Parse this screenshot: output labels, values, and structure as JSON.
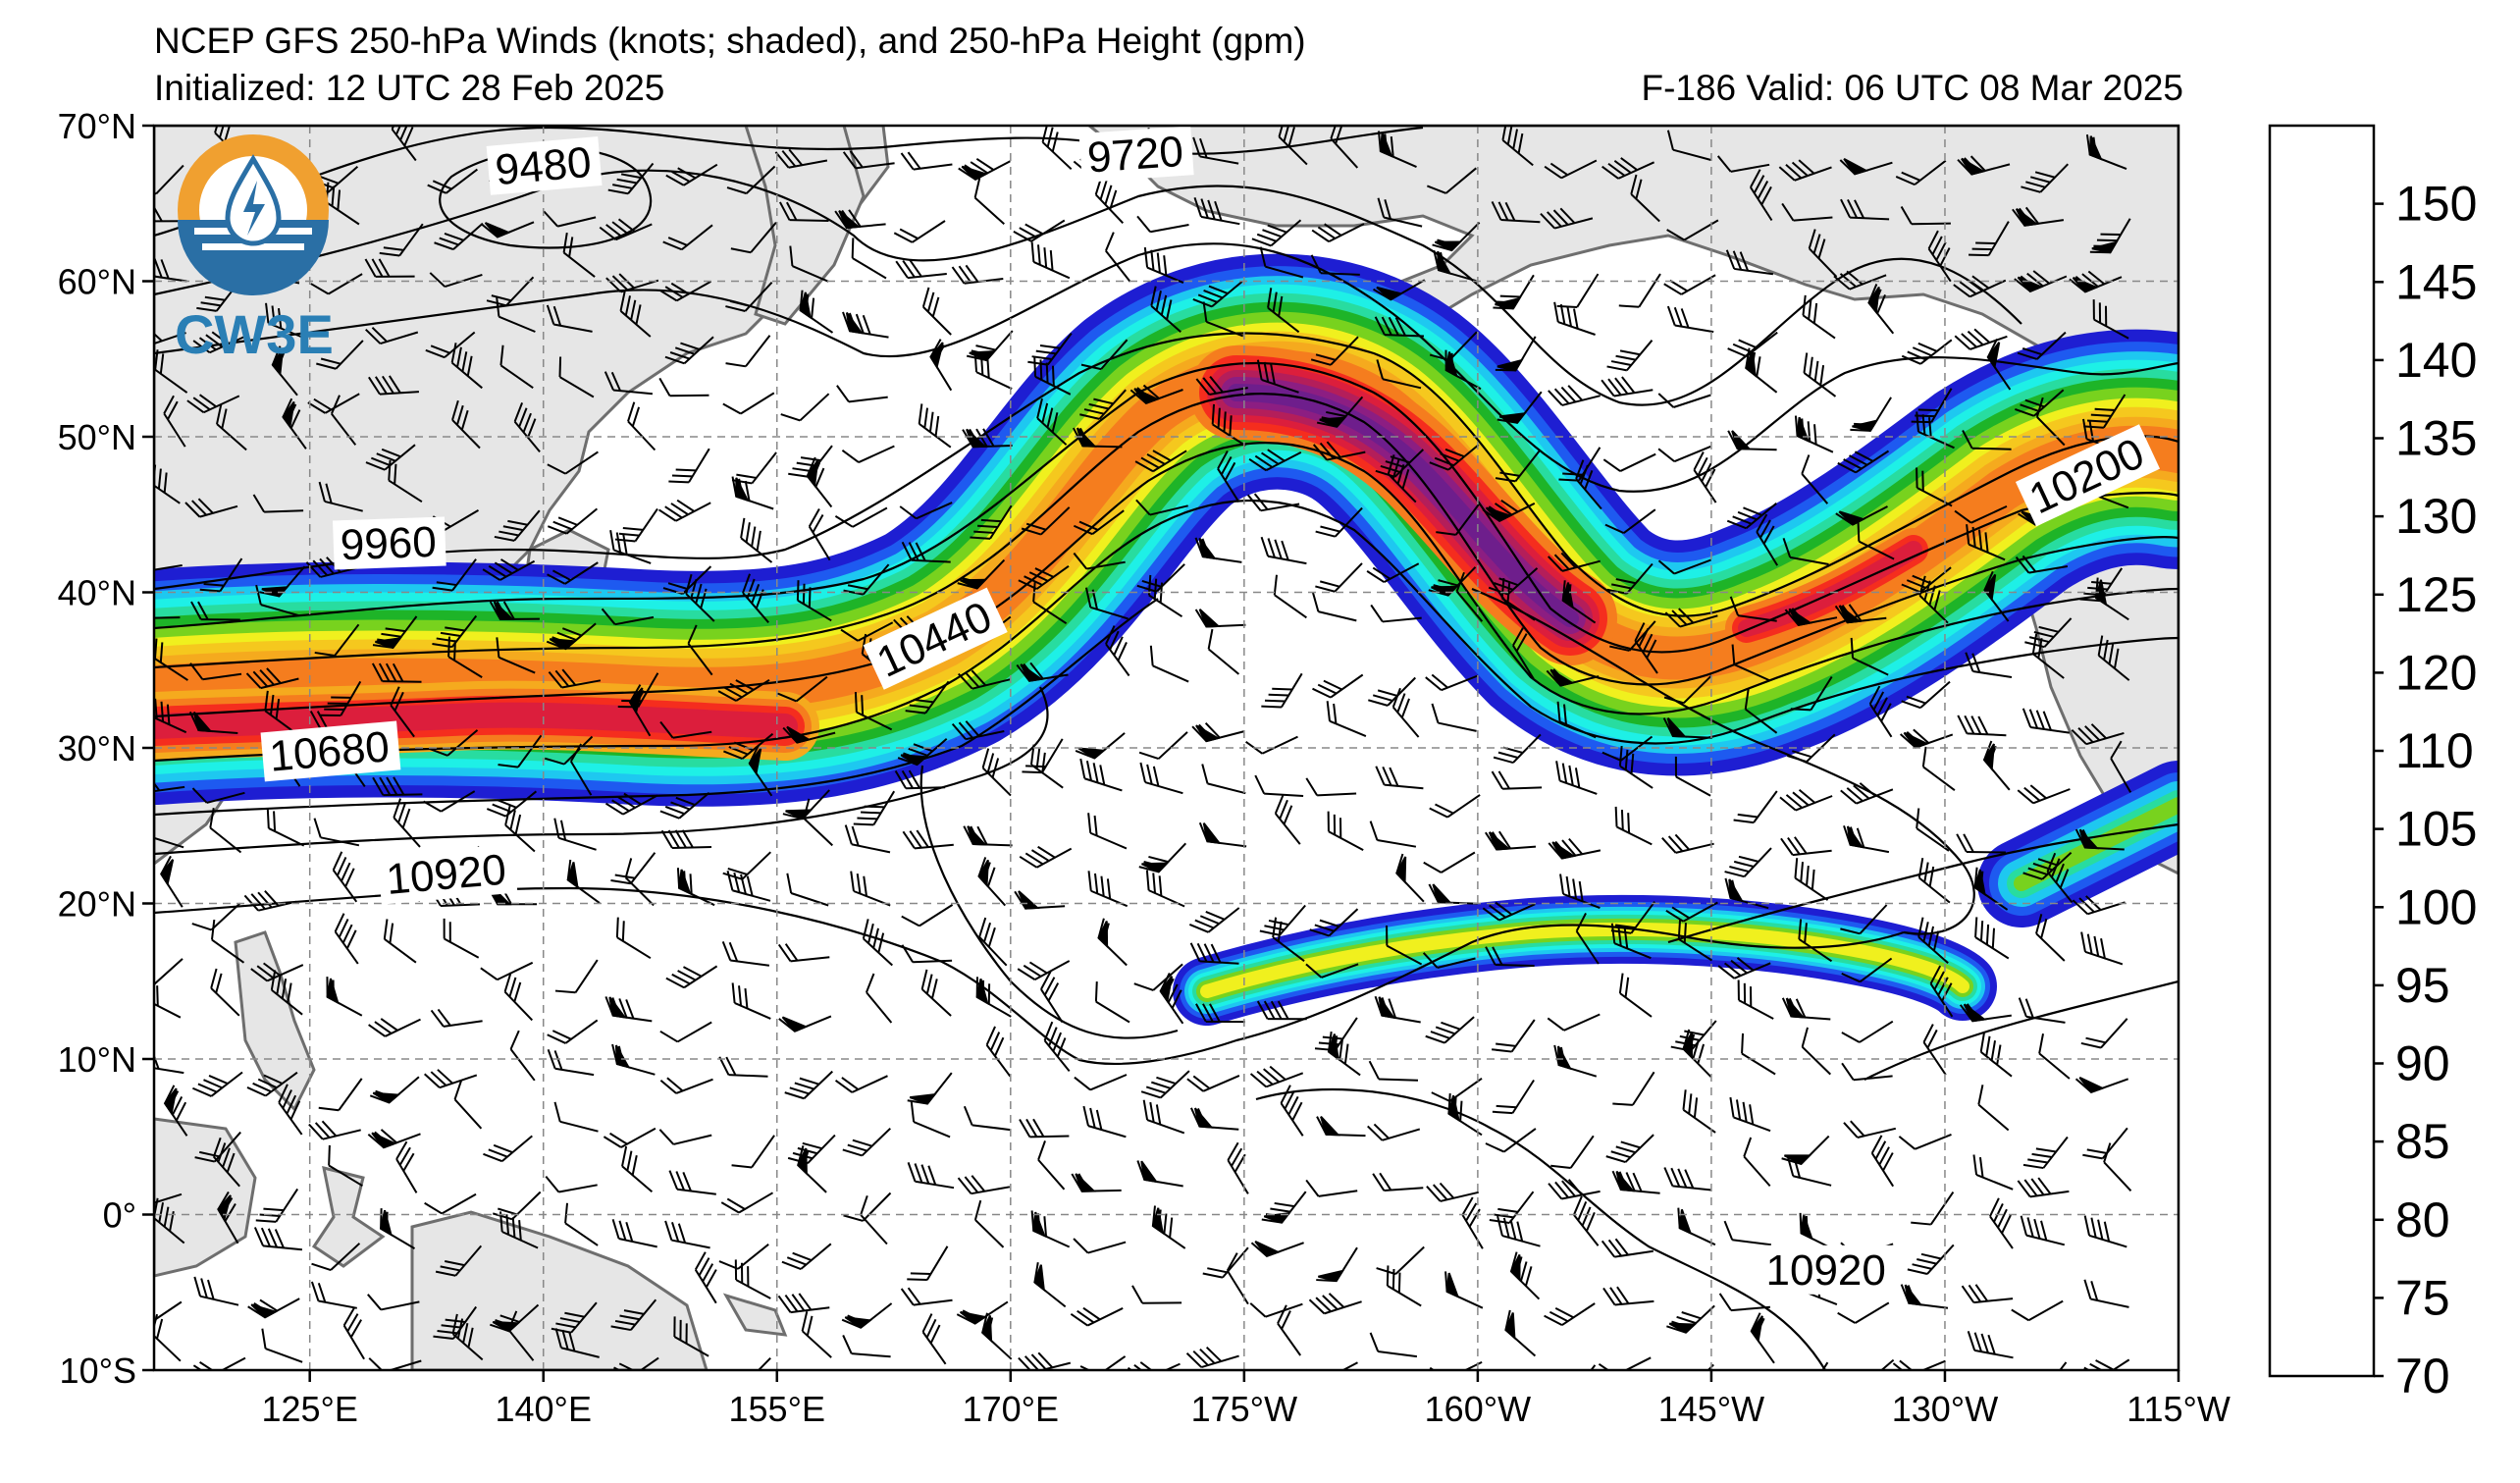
{
  "title": {
    "line1": "NCEP GFS 250-hPa Winds (knots; shaded), and 250-hPa Height (gpm)",
    "line2": "Initialized: 12 UTC 28 Feb 2025",
    "right": "F-186  Valid: 06 UTC 08 Mar 2025"
  },
  "logo": {
    "text": "CW3E",
    "icon": "cw3e-logo-icon"
  },
  "map": {
    "projection": "cylindrical equidistant",
    "lon_range": [
      115,
      245
    ],
    "lat_range": [
      -10,
      70
    ],
    "grid": true,
    "land_color": "#e6e6e6",
    "coast_color": "#6e6e6e",
    "lat_ticks": [
      {
        "value": 70,
        "label": "70°N"
      },
      {
        "value": 60,
        "label": "60°N"
      },
      {
        "value": 50,
        "label": "50°N"
      },
      {
        "value": 40,
        "label": "40°N"
      },
      {
        "value": 30,
        "label": "30°N"
      },
      {
        "value": 20,
        "label": "20°N"
      },
      {
        "value": 10,
        "label": "10°N"
      },
      {
        "value": 0,
        "label": "0°"
      },
      {
        "value": -10,
        "label": "10°S"
      }
    ],
    "lon_ticks": [
      {
        "value": 125,
        "label": "125°E"
      },
      {
        "value": 140,
        "label": "140°E"
      },
      {
        "value": 155,
        "label": "155°E"
      },
      {
        "value": 170,
        "label": "170°E"
      },
      {
        "value": 185,
        "label": "175°W"
      },
      {
        "value": 200,
        "label": "160°W"
      },
      {
        "value": 215,
        "label": "145°W"
      },
      {
        "value": 230,
        "label": "130°W"
      },
      {
        "value": 245,
        "label": "115°W"
      }
    ],
    "contour_labels": [
      {
        "text": "9480",
        "lon": 137,
        "lat": 66.2,
        "angle": -5
      },
      {
        "text": "9720",
        "lon": 175,
        "lat": 67,
        "angle": -4
      },
      {
        "text": "9960",
        "lon": 127,
        "lat": 42.1,
        "angle": -2
      },
      {
        "text": "10440",
        "lon": 162,
        "lat": 34.5,
        "angle": -25
      },
      {
        "text": "10680",
        "lon": 122.5,
        "lat": 28.5,
        "angle": -5
      },
      {
        "text": "10200",
        "lon": 236,
        "lat": 45,
        "angle": -25
      },
      {
        "text": "10920",
        "lon": 130,
        "lat": 20.6,
        "angle": -5
      },
      {
        "text": "10920",
        "lon": 218.5,
        "lat": -4.5,
        "angle": 0
      }
    ]
  },
  "colorbar": {
    "levels": [
      70,
      75,
      80,
      85,
      90,
      95,
      100,
      105,
      110,
      120,
      125,
      130,
      135,
      140,
      145,
      150
    ],
    "labels": [
      "70",
      "75",
      "80",
      "85",
      "90",
      "95",
      "100",
      "105",
      "110",
      "120",
      "125",
      "130",
      "135",
      "140",
      "145",
      "150"
    ],
    "colors": [
      "#1e1ed2",
      "#1e5af0",
      "#1ec8f0",
      "#1ef0e6",
      "#28dca0",
      "#1eb428",
      "#78d21e",
      "#f0f01e",
      "#f5c81e",
      "#f5aa1e",
      "#f57d1e",
      "#f52d1e",
      "#dc1e3c",
      "#b41e5a",
      "#8c1e82",
      "#6e1e8c"
    ]
  },
  "chart_data": {
    "type": "heatmap",
    "title": "NCEP GFS 250-hPa Winds (knots; shaded), and 250-hPa Height (gpm)",
    "color_scale_knots": [
      70,
      75,
      80,
      85,
      90,
      95,
      100,
      105,
      110,
      120,
      125,
      130,
      135,
      140,
      145,
      150
    ],
    "height_contour_labels_gpm": [
      9480,
      9720,
      9960,
      10200,
      10440,
      10680,
      10920,
      10920
    ]
  }
}
